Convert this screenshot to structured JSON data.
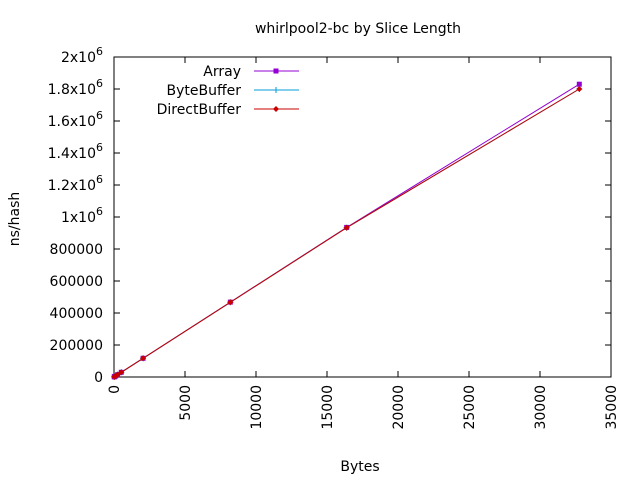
{
  "chart_data": {
    "type": "line",
    "title": "whirlpool2-bc by Slice Length",
    "xlabel": "Bytes",
    "ylabel": "ns/hash",
    "xlim": [
      0,
      35000
    ],
    "ylim": [
      0,
      2000000
    ],
    "x_ticks": [
      {
        "value": 0,
        "label": "0"
      },
      {
        "value": 5000,
        "label": "5000"
      },
      {
        "value": 10000,
        "label": "10000"
      },
      {
        "value": 15000,
        "label": "15000"
      },
      {
        "value": 20000,
        "label": "20000"
      },
      {
        "value": 25000,
        "label": "25000"
      },
      {
        "value": 30000,
        "label": "30000"
      },
      {
        "value": 35000,
        "label": "35000"
      }
    ],
    "y_ticks": [
      {
        "value": 0,
        "mant": "0",
        "exp": ""
      },
      {
        "value": 200000,
        "mant": "200000",
        "exp": ""
      },
      {
        "value": 400000,
        "mant": "400000",
        "exp": ""
      },
      {
        "value": 600000,
        "mant": "600000",
        "exp": ""
      },
      {
        "value": 800000,
        "mant": "800000",
        "exp": ""
      },
      {
        "value": 1000000,
        "mant": "1x10",
        "exp": "6"
      },
      {
        "value": 1200000,
        "mant": "1.2x10",
        "exp": "6"
      },
      {
        "value": 1400000,
        "mant": "1.4x10",
        "exp": "6"
      },
      {
        "value": 1600000,
        "mant": "1.6x10",
        "exp": "6"
      },
      {
        "value": 1800000,
        "mant": "1.8x10",
        "exp": "6"
      },
      {
        "value": 2000000,
        "mant": "2x10",
        "exp": "6"
      }
    ],
    "legend_position": "top-left",
    "grid": false,
    "x": [
      16,
      32,
      64,
      128,
      256,
      512,
      2048,
      8192,
      16384,
      32768
    ],
    "series": [
      {
        "name": "Array",
        "color": "#9400d3",
        "marker": "square",
        "values": [
          1000,
          1900,
          3800,
          7400,
          14700,
          29300,
          117000,
          468000,
          935000,
          1830000
        ]
      },
      {
        "name": "ByteBuffer",
        "color": "#009ed7",
        "marker": "plus",
        "values": [
          1000,
          1900,
          3800,
          7400,
          14700,
          29300,
          117000,
          467000,
          933000,
          1800000
        ]
      },
      {
        "name": "DirectBuffer",
        "color": "#c80000",
        "marker": "diamond",
        "values": [
          1000,
          1900,
          3800,
          7400,
          14700,
          29300,
          117000,
          467000,
          933000,
          1800000
        ]
      }
    ]
  }
}
